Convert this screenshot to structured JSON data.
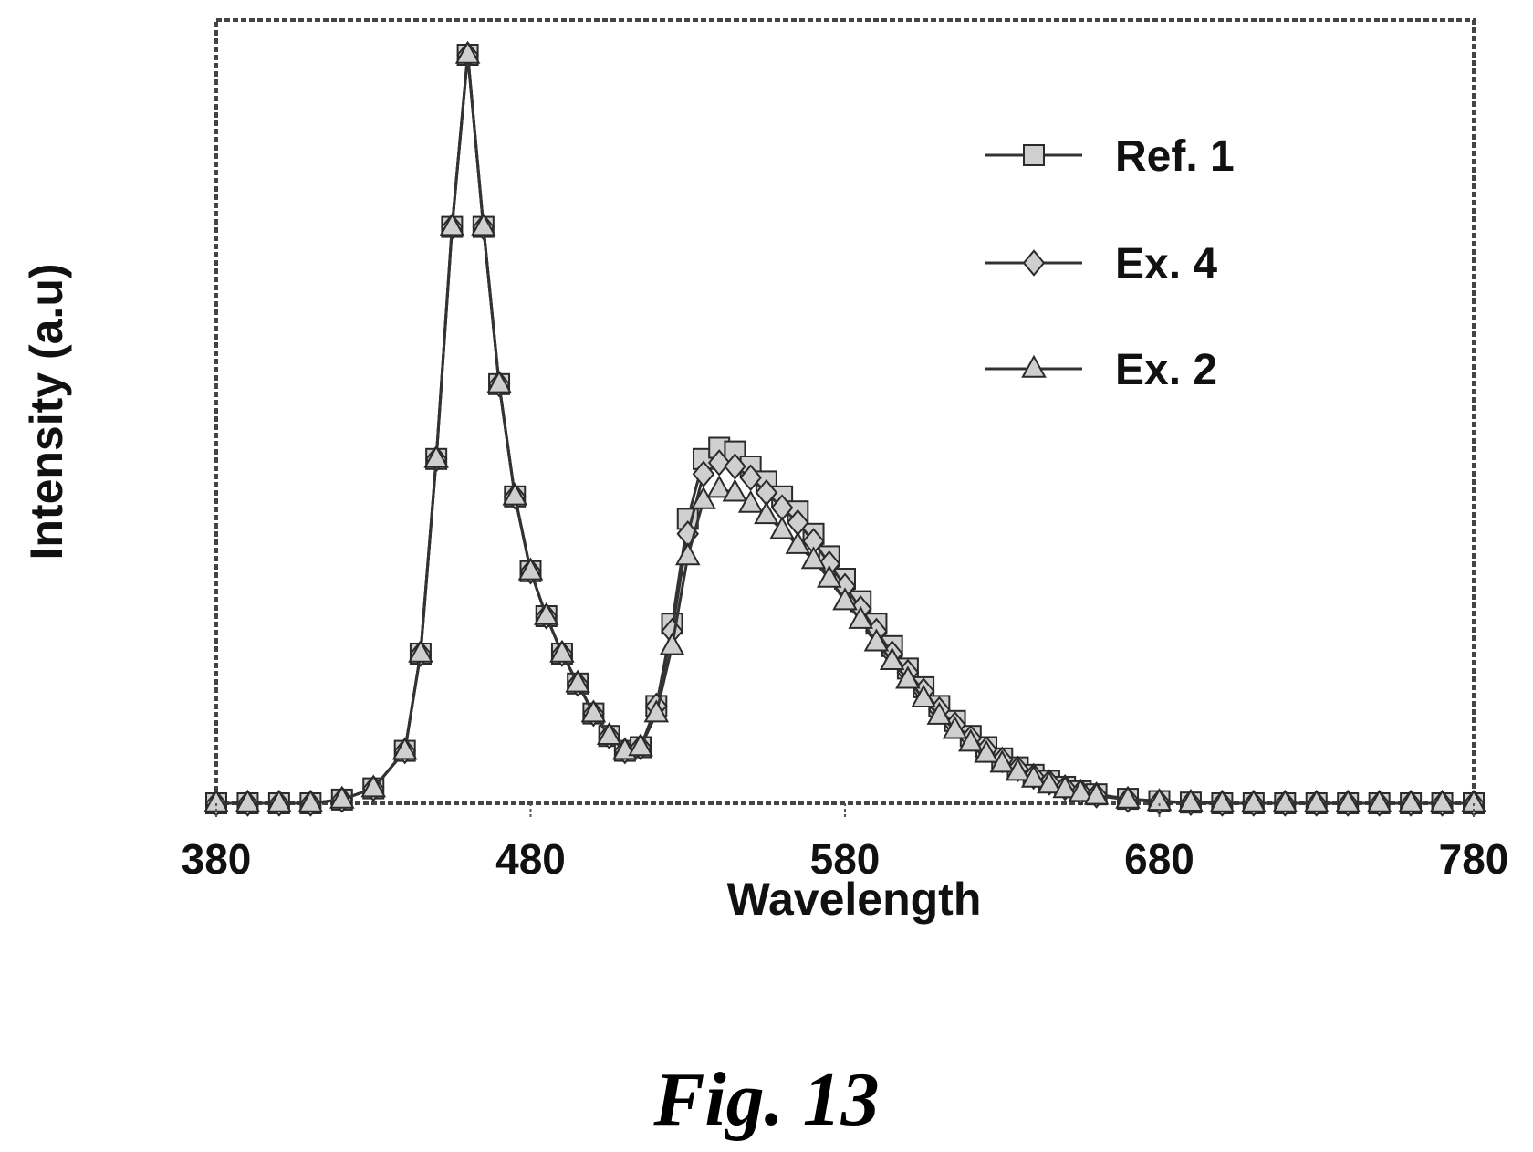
{
  "chart_data": {
    "type": "line",
    "xlabel": "Wavelength",
    "ylabel": "Intensity (a.u)",
    "xlim": [
      380,
      780
    ],
    "ylim": [
      0,
      1
    ],
    "x_ticks": [
      380,
      480,
      580,
      680,
      780
    ],
    "grid": false,
    "legend_position": "top-right",
    "series": [
      {
        "name": "Ref. 1",
        "marker": "square",
        "x": [
          380,
          390,
          400,
          410,
          420,
          430,
          440,
          445,
          450,
          455,
          460,
          465,
          470,
          475,
          480,
          485,
          490,
          495,
          500,
          505,
          510,
          515,
          520,
          525,
          530,
          535,
          540,
          545,
          550,
          555,
          560,
          565,
          570,
          575,
          580,
          585,
          590,
          595,
          600,
          605,
          610,
          615,
          620,
          625,
          630,
          635,
          640,
          645,
          650,
          655,
          660,
          670,
          680,
          690,
          700,
          710,
          720,
          730,
          740,
          750,
          760,
          770,
          780
        ],
        "values": [
          0,
          0,
          0,
          0,
          0.005,
          0.02,
          0.07,
          0.2,
          0.46,
          0.77,
          1.0,
          0.77,
          0.56,
          0.41,
          0.31,
          0.25,
          0.2,
          0.16,
          0.12,
          0.09,
          0.07,
          0.075,
          0.13,
          0.24,
          0.38,
          0.46,
          0.475,
          0.47,
          0.45,
          0.43,
          0.41,
          0.39,
          0.36,
          0.33,
          0.3,
          0.27,
          0.24,
          0.21,
          0.18,
          0.155,
          0.13,
          0.11,
          0.09,
          0.075,
          0.06,
          0.048,
          0.038,
          0.03,
          0.022,
          0.016,
          0.012,
          0.006,
          0.003,
          0.001,
          0,
          0,
          0,
          0,
          0,
          0,
          0,
          0,
          0
        ]
      },
      {
        "name": "Ex. 4",
        "marker": "diamond",
        "x": [
          380,
          390,
          400,
          410,
          420,
          430,
          440,
          445,
          450,
          455,
          460,
          465,
          470,
          475,
          480,
          485,
          490,
          495,
          500,
          505,
          510,
          515,
          520,
          525,
          530,
          535,
          540,
          545,
          550,
          555,
          560,
          565,
          570,
          575,
          580,
          585,
          590,
          595,
          600,
          605,
          610,
          615,
          620,
          625,
          630,
          635,
          640,
          645,
          650,
          655,
          660,
          670,
          680,
          690,
          700,
          710,
          720,
          730,
          740,
          750,
          760,
          770,
          780
        ],
        "values": [
          0,
          0,
          0,
          0,
          0.005,
          0.02,
          0.07,
          0.2,
          0.46,
          0.77,
          1.0,
          0.77,
          0.56,
          0.41,
          0.31,
          0.25,
          0.2,
          0.16,
          0.12,
          0.09,
          0.07,
          0.075,
          0.13,
          0.23,
          0.36,
          0.44,
          0.455,
          0.45,
          0.435,
          0.415,
          0.395,
          0.375,
          0.35,
          0.32,
          0.29,
          0.26,
          0.23,
          0.2,
          0.175,
          0.15,
          0.125,
          0.105,
          0.087,
          0.072,
          0.058,
          0.046,
          0.036,
          0.028,
          0.021,
          0.015,
          0.011,
          0.005,
          0.002,
          0.001,
          0,
          0,
          0,
          0,
          0,
          0,
          0,
          0,
          0
        ]
      },
      {
        "name": "Ex. 2",
        "marker": "triangle",
        "x": [
          380,
          390,
          400,
          410,
          420,
          430,
          440,
          445,
          450,
          455,
          460,
          465,
          470,
          475,
          480,
          485,
          490,
          495,
          500,
          505,
          510,
          515,
          520,
          525,
          530,
          535,
          540,
          545,
          550,
          555,
          560,
          565,
          570,
          575,
          580,
          585,
          590,
          595,
          600,
          605,
          610,
          615,
          620,
          625,
          630,
          635,
          640,
          645,
          650,
          655,
          660,
          670,
          680,
          690,
          700,
          710,
          720,
          730,
          740,
          750,
          760,
          770,
          780
        ],
        "values": [
          0,
          0,
          0,
          0,
          0.005,
          0.02,
          0.07,
          0.2,
          0.46,
          0.77,
          1.0,
          0.77,
          0.56,
          0.41,
          0.31,
          0.25,
          0.2,
          0.16,
          0.12,
          0.09,
          0.07,
          0.075,
          0.12,
          0.21,
          0.33,
          0.405,
          0.42,
          0.415,
          0.4,
          0.385,
          0.365,
          0.345,
          0.325,
          0.3,
          0.27,
          0.245,
          0.215,
          0.19,
          0.165,
          0.14,
          0.117,
          0.098,
          0.081,
          0.066,
          0.053,
          0.042,
          0.033,
          0.025,
          0.019,
          0.014,
          0.01,
          0.005,
          0.002,
          0.001,
          0,
          0,
          0,
          0,
          0,
          0,
          0,
          0,
          0
        ]
      }
    ]
  },
  "caption": "Fig. 13"
}
